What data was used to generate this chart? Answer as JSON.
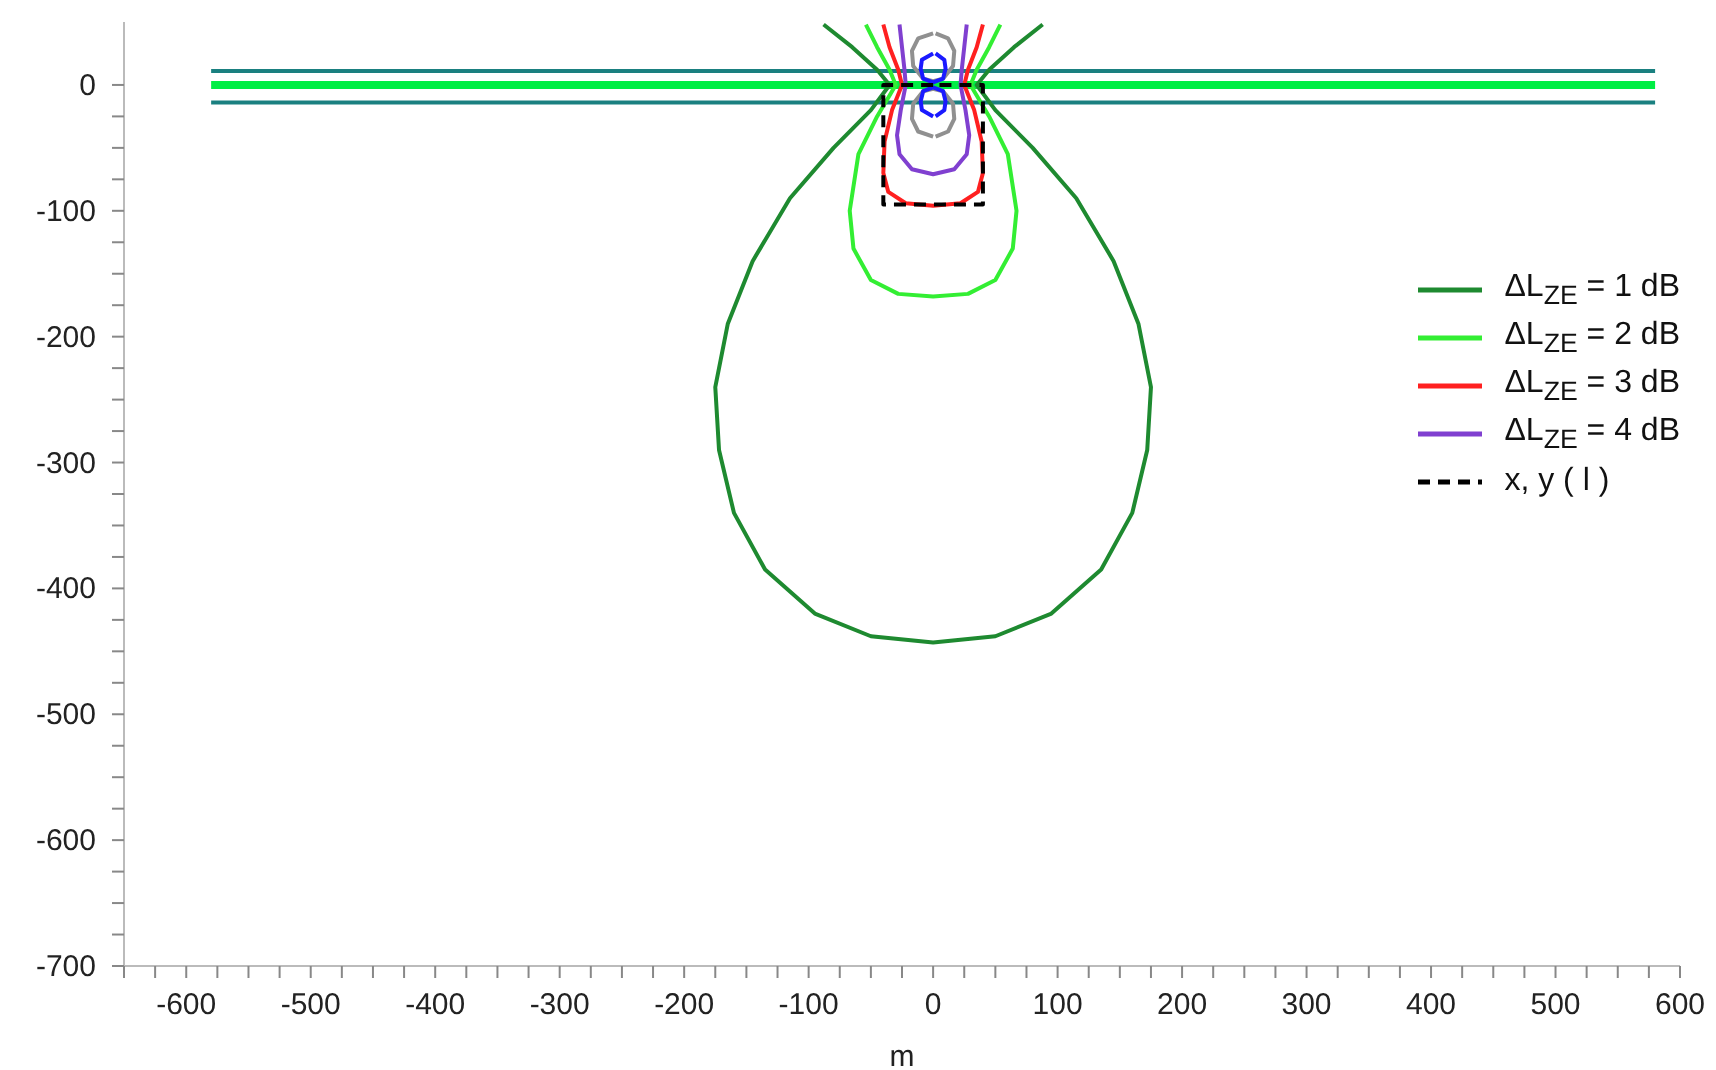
{
  "chart_data": {
    "type": "line",
    "xlabel": "m",
    "xlim": [
      -650,
      600
    ],
    "ylim": [
      -700,
      50
    ],
    "xticks": [
      {
        "value": -650,
        "label": null
      },
      {
        "value": -625,
        "label": null
      },
      -600,
      {
        "value": -575,
        "label": null
      },
      {
        "value": -550,
        "label": null
      },
      {
        "value": -525,
        "label": null
      },
      -500,
      {
        "value": -475,
        "label": null
      },
      {
        "value": -450,
        "label": null
      },
      {
        "value": -425,
        "label": null
      },
      -400,
      {
        "value": -375,
        "label": null
      },
      {
        "value": -350,
        "label": null
      },
      {
        "value": -325,
        "label": null
      },
      -300,
      {
        "value": -275,
        "label": null
      },
      {
        "value": -250,
        "label": null
      },
      {
        "value": -225,
        "label": null
      },
      -200,
      {
        "value": -175,
        "label": null
      },
      {
        "value": -150,
        "label": null
      },
      {
        "value": -125,
        "label": null
      },
      -100,
      {
        "value": -75,
        "label": null
      },
      {
        "value": -50,
        "label": null
      },
      {
        "value": -25,
        "label": null
      },
      0,
      {
        "value": 25,
        "label": null
      },
      {
        "value": 50,
        "label": null
      },
      {
        "value": 75,
        "label": null
      },
      100,
      {
        "value": 125,
        "label": null
      },
      {
        "value": 150,
        "label": null
      },
      {
        "value": 175,
        "label": null
      },
      200,
      {
        "value": 225,
        "label": null
      },
      {
        "value": 250,
        "label": null
      },
      {
        "value": 275,
        "label": null
      },
      300,
      {
        "value": 325,
        "label": null
      },
      {
        "value": 350,
        "label": null
      },
      {
        "value": 375,
        "label": null
      },
      400,
      {
        "value": 425,
        "label": null
      },
      {
        "value": 450,
        "label": null
      },
      {
        "value": 475,
        "label": null
      },
      500,
      {
        "value": 525,
        "label": null
      },
      {
        "value": 550,
        "label": null
      },
      {
        "value": 575,
        "label": null
      },
      600
    ],
    "yticks": [
      -700,
      {
        "value": -675,
        "label": null
      },
      {
        "value": -650,
        "label": null
      },
      {
        "value": -625,
        "label": null
      },
      -600,
      {
        "value": -575,
        "label": null
      },
      {
        "value": -550,
        "label": null
      },
      {
        "value": -525,
        "label": null
      },
      -500,
      {
        "value": -475,
        "label": null
      },
      {
        "value": -450,
        "label": null
      },
      {
        "value": -425,
        "label": null
      },
      -400,
      {
        "value": -375,
        "label": null
      },
      {
        "value": -350,
        "label": null
      },
      {
        "value": -325,
        "label": null
      },
      -300,
      {
        "value": -275,
        "label": null
      },
      {
        "value": -250,
        "label": null
      },
      {
        "value": -225,
        "label": null
      },
      -200,
      {
        "value": -175,
        "label": null
      },
      {
        "value": -150,
        "label": null
      },
      {
        "value": -125,
        "label": null
      },
      -100,
      {
        "value": -75,
        "label": null
      },
      {
        "value": -50,
        "label": null
      },
      {
        "value": -25,
        "label": null
      },
      0
    ],
    "grid": false,
    "legend": "right",
    "marker": "none",
    "series": [
      {
        "color": "#1a8080",
        "x": [
          -580,
          580
        ],
        "values": [
          11,
          11
        ]
      },
      {
        "color": "#1a8080",
        "x": [
          -580,
          580
        ],
        "values": [
          -14,
          -14
        ]
      },
      {
        "color": "#00ee44",
        "x": [
          -580,
          580
        ],
        "values": [
          0,
          0
        ]
      },
      {
        "name": "ΔL$_{ZE}$ = 1 dB",
        "color": "#1e8a30",
        "x": [
          -88,
          -65,
          -45,
          -35,
          -50,
          -80,
          -115,
          -145,
          -165,
          -175,
          -172,
          -160,
          -135,
          -95,
          -50,
          0,
          50,
          95,
          135,
          160,
          172,
          175,
          165,
          145,
          115,
          80,
          50,
          35,
          45,
          65,
          88
        ],
        "values": [
          48,
          30,
          12,
          0,
          -20,
          -50,
          -90,
          -140,
          -190,
          -240,
          -290,
          -340,
          -385,
          -420,
          -438,
          -443,
          -438,
          -420,
          -385,
          -340,
          -290,
          -240,
          -190,
          -140,
          -90,
          -50,
          -20,
          0,
          12,
          30,
          48
        ]
      },
      {
        "name": "ΔL$_{ZE}$ = 2 dB",
        "color": "#33ee33",
        "x": [
          -54,
          -45,
          -35,
          -30,
          -45,
          -60,
          -67,
          -64,
          -50,
          -28,
          0,
          28,
          50,
          64,
          67,
          60,
          45,
          30,
          35,
          45,
          54
        ],
        "values": [
          48,
          30,
          12,
          0,
          -25,
          -55,
          -100,
          -130,
          -155,
          -166,
          -168,
          -166,
          -155,
          -130,
          -100,
          -55,
          -25,
          0,
          12,
          30,
          48
        ]
      },
      {
        "name": "ΔL$_{ZE}$ = 3 dB",
        "color": "#ff2020",
        "x": [
          -40,
          -35,
          -28,
          -25,
          -33,
          -39,
          -40,
          -36,
          -22,
          0,
          22,
          36,
          40,
          39,
          33,
          25,
          28,
          35,
          40
        ],
        "values": [
          48,
          30,
          12,
          0,
          -20,
          -45,
          -70,
          -85,
          -94,
          -96,
          -94,
          -85,
          -70,
          -45,
          -20,
          0,
          12,
          30,
          48
        ]
      },
      {
        "name": "ΔL$_{ZE}$ = 4 dB",
        "color": "#8040d0",
        "x": [
          -27,
          -25,
          -23,
          -22,
          -26,
          -29,
          -27,
          -17,
          0,
          17,
          27,
          29,
          26,
          22,
          23,
          25,
          27
        ],
        "values": [
          48,
          30,
          12,
          0,
          -20,
          -40,
          -55,
          -67,
          -71,
          -67,
          -55,
          -40,
          -20,
          0,
          12,
          30,
          48
        ]
      },
      {
        "color": "#909090",
        "x": [
          0,
          -12,
          -17,
          -16,
          -8,
          0,
          8,
          16,
          17,
          12,
          2
        ],
        "values": [
          41,
          37,
          27,
          15,
          5,
          3,
          5,
          15,
          27,
          37,
          41
        ]
      },
      {
        "color": "#909090",
        "x": [
          0,
          -12,
          -17,
          -16,
          -8,
          0,
          8,
          16,
          17,
          12,
          2
        ],
        "values": [
          -41,
          -37,
          -27,
          -15,
          -5,
          -3,
          -5,
          -15,
          -27,
          -37,
          -41
        ]
      },
      {
        "color": "#1a1aff",
        "x": [
          0,
          -9,
          -10,
          -8,
          0,
          8,
          10,
          9,
          2
        ],
        "values": [
          25,
          20,
          13,
          5,
          2,
          5,
          13,
          20,
          25
        ]
      },
      {
        "color": "#1a1aff",
        "x": [
          0,
          -9,
          -10,
          -8,
          0,
          8,
          10,
          9,
          2
        ],
        "values": [
          -25,
          -20,
          -13,
          -5,
          -2,
          -5,
          -13,
          -20,
          -25
        ]
      },
      {
        "name": "x, y ( l )",
        "color": "#000000",
        "line_style": "dashed",
        "x": [
          0,
          -40,
          -40,
          40,
          40,
          4
        ],
        "values": [
          0,
          0,
          -95,
          -95,
          0,
          0
        ]
      }
    ]
  }
}
